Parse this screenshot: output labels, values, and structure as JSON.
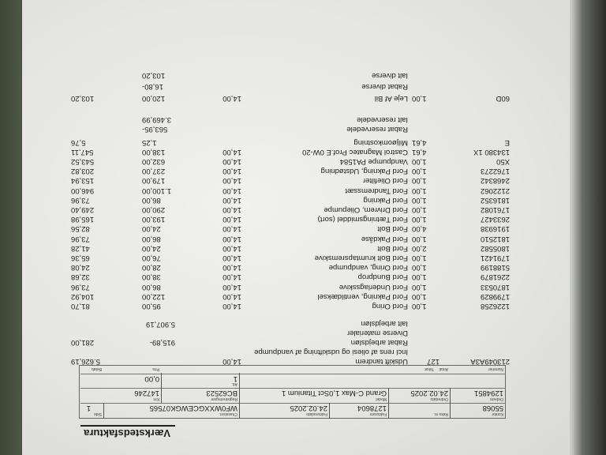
{
  "document": {
    "title": "Værkstedsfaktura",
    "header": {
      "kontor_label": "Kontor",
      "kontor": "55068",
      "reks_label": "Reks nr.",
      "fakturanr_label": "Fakturanr",
      "fakturanr": "1278604",
      "fakturadato_label": "Fakturadato",
      "fakturadato": "24.02.2025",
      "chassisnr_label": "Chassisnr.",
      "chassisnr": "WF0WXXGCEWGK07565",
      "side_label": "Side",
      "side": "1",
      "ordrenr_label": "Ordrenr",
      "ordrenr": "1294851",
      "ordredato_label": "Ordredato",
      "ordredato": "24.02.2025",
      "model_label": "Model",
      "model": "Grand C-Max 1,0Sct Titanium 1",
      "regnr_label": "Registreringsnr",
      "regnr": "BC62523",
      "km_label": "Km",
      "km": "147246",
      "att_label": "Att.",
      "att": "1",
      "rabat_value": "0,00"
    },
    "columns": {
      "nummer": "Nummer",
      "antal": "Antal",
      "tekst": "Tekst",
      "pris": "Pris",
      "belob": "Beløb"
    },
    "labor": {
      "nummer": "213049A3A",
      "antal": "127",
      "tekst": "Udskift tandrem",
      "rabat": "14,00",
      "belob": "5.626,19",
      "note": "Incl rens af oliesi og udskiftning af vandpumpe",
      "rabat_label": "Rabat arbejdsløn",
      "rabat_value": "915,89-",
      "rabat_belob": "281,00",
      "diverse_label": "Diverse materialer",
      "total_label": "Ialt arbejdsløn",
      "total": "5.907,19"
    },
    "items": [
      {
        "nummer": "1226258",
        "antal": "1,00",
        "tekst": "Ford Oring",
        "rabat": "14,00",
        "pris": "95,00",
        "belob": "81,70"
      },
      {
        "nummer": "1799829",
        "antal": "1,00",
        "tekst": "Ford Pakning, ventildæksel",
        "rabat": "14,00",
        "pris": "122,00",
        "belob": "104,92"
      },
      {
        "nummer": "1870533",
        "antal": "1,00",
        "tekst": "Ford Underlagsskive",
        "rabat": "14,00",
        "pris": "86,00",
        "belob": "73,96"
      },
      {
        "nummer": "2261879",
        "antal": "1,00",
        "tekst": "Ford Bundprop",
        "rabat": "14,00",
        "pris": "38,00",
        "belob": "32,68"
      },
      {
        "nummer": "5188199",
        "antal": "1,00",
        "tekst": "Ford Oring, vandpumpe",
        "rabat": "14,00",
        "pris": "28,00",
        "belob": "24,08"
      },
      {
        "nummer": "1791421",
        "antal": "1,00",
        "tekst": "Ford Bolt krumtapsremskive",
        "rabat": "14,00",
        "pris": "76,00",
        "belob": "65,36"
      },
      {
        "nummer": "1805582",
        "antal": "2,00",
        "tekst": "Ford Bolt",
        "rabat": "14,00",
        "pris": "24,00",
        "belob": "41,28"
      },
      {
        "nummer": "1812510",
        "antal": "1,00",
        "tekst": "Ford Pakdåse",
        "rabat": "14,00",
        "pris": "86,00",
        "belob": "73,96"
      },
      {
        "nummer": "1916938",
        "antal": "4,00",
        "tekst": "Ford Bolt",
        "rabat": "14,00",
        "pris": "24,00",
        "belob": "82,56"
      },
      {
        "nummer": "2633427",
        "antal": "1,00",
        "tekst": "Ford Tætningsmiddel (sort)",
        "rabat": "14,00",
        "pris": "193,00",
        "belob": "165,98"
      },
      {
        "nummer": "1761082",
        "antal": "1,00",
        "tekst": "Ford Drivrem,  Oliepumpe",
        "rabat": "14,00",
        "pris": "290,00",
        "belob": "249,40"
      },
      {
        "nummer": "1816352",
        "antal": "1,00",
        "tekst": "Ford Pakning",
        "rabat": "14,00",
        "pris": "86,00",
        "belob": "73,96"
      },
      {
        "nummer": "2122062",
        "antal": "1,00",
        "tekst": "Ford Tandremssæt",
        "rabat": "14,00",
        "pris": "1.100,00",
        "belob": "946,00"
      },
      {
        "nummer": "2468342",
        "antal": "1,00",
        "tekst": "Ford Oliefilter",
        "rabat": "14,00",
        "pris": "179,00",
        "belob": "153,94"
      },
      {
        "nummer": "1762273",
        "antal": "1,00",
        "tekst": "Ford Pakning, Udstødning",
        "rabat": "14,00",
        "pris": "237,00",
        "belob": "203,82"
      },
      {
        "nummer": "X50",
        "antal": "1,00",
        "tekst": "Vandpumpe PA1584",
        "rabat": "14,00",
        "pris": "632,00",
        "belob": "543,52"
      },
      {
        "nummer": "134380 1X",
        "antal": "4,61",
        "tekst": "Castrol Magnatec Prof.E 0W-20",
        "rabat": "14,00",
        "pris": "138,00",
        "belob": "547,11"
      },
      {
        "nummer": "E",
        "antal": "4,61",
        "tekst": "Miljøomkostning",
        "rabat": "",
        "pris": "1,25",
        "belob": "5,76"
      }
    ],
    "parts_totals": {
      "rabat_label": "Rabat reservedele",
      "rabat": "563,95-",
      "total_label": "Ialt reservedele",
      "total": "3.469,99"
    },
    "diverse": {
      "nummer": "60D",
      "antal": "1,00",
      "tekst": "Leje Af Bil",
      "rabat": "14,00",
      "pris": "120,00",
      "belob": "103,20",
      "rabat_label": "Rabat diverse",
      "rabat_value": "16,80-",
      "total_label": "Ialt diverse",
      "total": "103,20"
    }
  }
}
